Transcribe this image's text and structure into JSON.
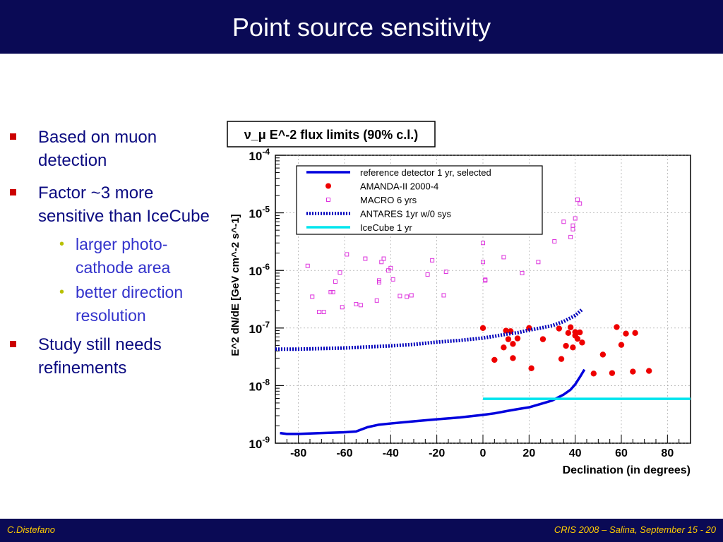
{
  "title": "Point source sensitivity",
  "bullets": [
    {
      "text": "Based on muon detection",
      "sub": []
    },
    {
      "text": "Factor ~3 more sensitive  than IceCube",
      "sub": [
        "larger photo-cathode area",
        "better direction resolution"
      ]
    },
    {
      "text": "Study still needs refinements",
      "sub": []
    }
  ],
  "footer": {
    "left": "C.Distefano",
    "right": "CRIS 2008 – Salina, September  15 - 20"
  },
  "colors": {
    "header_bg": "#0a0a55",
    "footer_text": "#ffcc00",
    "bullet_text": "#0a0a80",
    "bullet_marker": "#cc0000",
    "sub_text": "#3333cc",
    "sub_dot": "#b8c000"
  },
  "chart_data": {
    "type": "scatter",
    "title": "ν_μ E^-2 flux limits (90% c.l.)",
    "xlabel": "Declination (in degrees)",
    "ylabel": "E^2 dN/dE [GeV cm^-2 s^-1]",
    "xlim": [
      -90,
      90
    ],
    "ylim": [
      1e-09,
      0.0001
    ],
    "yscale": "log",
    "x_ticks": [
      -80,
      -60,
      -40,
      -20,
      0,
      20,
      40,
      60,
      80
    ],
    "y_ticks": [
      {
        "value": 1e-09,
        "label": "10-9"
      },
      {
        "value": 1e-08,
        "label": "10-8"
      },
      {
        "value": 1e-07,
        "label": "10-7"
      },
      {
        "value": 1e-06,
        "label": "10-6"
      },
      {
        "value": 1e-05,
        "label": "10-5"
      },
      {
        "value": 0.0001,
        "label": "10-4"
      }
    ],
    "grid": true,
    "legend_position": "top-left",
    "series": [
      {
        "name": "reference detector 1 yr, selected",
        "style": "line",
        "color": "#0000dd",
        "x": [
          -88,
          -85,
          -80,
          -70,
          -60,
          -55,
          -50,
          -45,
          -40,
          -30,
          -20,
          -10,
          0,
          5,
          10,
          15,
          20,
          25,
          30,
          35,
          38,
          40,
          42,
          44
        ],
        "y": [
          1.5e-09,
          1.45e-09,
          1.45e-09,
          1.5e-09,
          1.55e-09,
          1.6e-09,
          1.9e-09,
          2.1e-09,
          2.2e-09,
          2.4e-09,
          2.6e-09,
          2.8e-09,
          3.1e-09,
          3.3e-09,
          3.6e-09,
          3.9e-09,
          4.2e-09,
          4.8e-09,
          5.5e-09,
          7e-09,
          8.5e-09,
          1.05e-08,
          1.4e-08,
          1.9e-08
        ]
      },
      {
        "name": "AMANDA-II 2000-4",
        "style": "markers",
        "marker": "circle",
        "color": "#ee0000",
        "x": [
          0,
          5,
          9,
          10,
          11,
          12,
          13,
          13,
          15,
          20,
          21,
          26,
          33,
          34,
          36,
          37,
          38,
          39,
          40,
          40,
          41,
          42,
          43,
          48,
          52,
          56,
          58,
          60,
          62,
          65,
          66,
          72
        ],
        "y": [
          1e-07,
          2.8e-08,
          4.6e-08,
          9e-08,
          6.4e-08,
          8.8e-08,
          5.3e-08,
          3e-08,
          6.6e-08,
          1e-07,
          2e-08,
          6.4e-08,
          9.8e-08,
          2.9e-08,
          4.9e-08,
          8.2e-08,
          1.03e-07,
          4.6e-08,
          7.4e-08,
          8.5e-08,
          6.5e-08,
          8.4e-08,
          5.6e-08,
          1.62e-08,
          3.46e-08,
          1.65e-08,
          1.04e-07,
          5.1e-08,
          8e-08,
          1.75e-08,
          8.2e-08,
          1.8e-08
        ]
      },
      {
        "name": "MACRO 6 yrs",
        "style": "markers",
        "marker": "open-square",
        "color": "#dd33dd",
        "x": [
          -76,
          -74,
          -71,
          -69,
          -66,
          -65,
          -64,
          -62,
          -61,
          -59,
          -55,
          -53,
          -51,
          -46,
          -45,
          -45,
          -44,
          -43,
          -41,
          -40,
          -39,
          -36,
          -33,
          -31,
          -24,
          -22,
          -17,
          -16,
          0,
          0,
          1,
          1,
          9,
          17,
          24,
          31,
          35,
          38,
          39,
          39,
          40,
          41,
          42
        ],
        "y": [
          1.2e-06,
          3.5e-07,
          1.9e-07,
          1.9e-07,
          4.2e-07,
          4.2e-07,
          6.4e-07,
          9.2e-07,
          2.3e-07,
          1.9e-06,
          2.6e-07,
          2.5e-07,
          1.6e-06,
          3e-07,
          6.7e-07,
          6.2e-07,
          1.4e-06,
          1.6e-06,
          1e-06,
          1.1e-06,
          7e-07,
          3.6e-07,
          3.5e-07,
          3.7e-07,
          8.5e-07,
          1.5e-06,
          3.7e-07,
          9.5e-07,
          3e-06,
          1.4e-06,
          6.7e-07,
          6.9e-07,
          1.7e-06,
          9e-07,
          1.4e-06,
          3.2e-06,
          7e-06,
          3.8e-06,
          6e-06,
          5.2e-06,
          8e-06,
          1.7e-05,
          1.45e-05
        ]
      },
      {
        "name": "ANTARES 1yr w/0 sys",
        "style": "dotted",
        "color": "#0000bb",
        "x": [
          -90,
          -85,
          -80,
          -70,
          -60,
          -50,
          -40,
          -30,
          -20,
          -10,
          0,
          5,
          10,
          15,
          20,
          25,
          30,
          35,
          40,
          43
        ],
        "y": [
          4.3e-08,
          4.3e-08,
          4.3e-08,
          4.4e-08,
          4.5e-08,
          4.7e-08,
          4.9e-08,
          5.2e-08,
          5.7e-08,
          6.1e-08,
          6.7e-08,
          7.2e-08,
          7.8e-08,
          8.3e-08,
          9.2e-08,
          1e-07,
          1.1e-07,
          1.3e-07,
          1.65e-07,
          2.1e-07
        ]
      },
      {
        "name": "IceCube 1 yr",
        "style": "line",
        "color": "#00e5ee",
        "x": [
          0,
          90
        ],
        "y": [
          5.9e-09,
          5.9e-09
        ]
      }
    ]
  }
}
